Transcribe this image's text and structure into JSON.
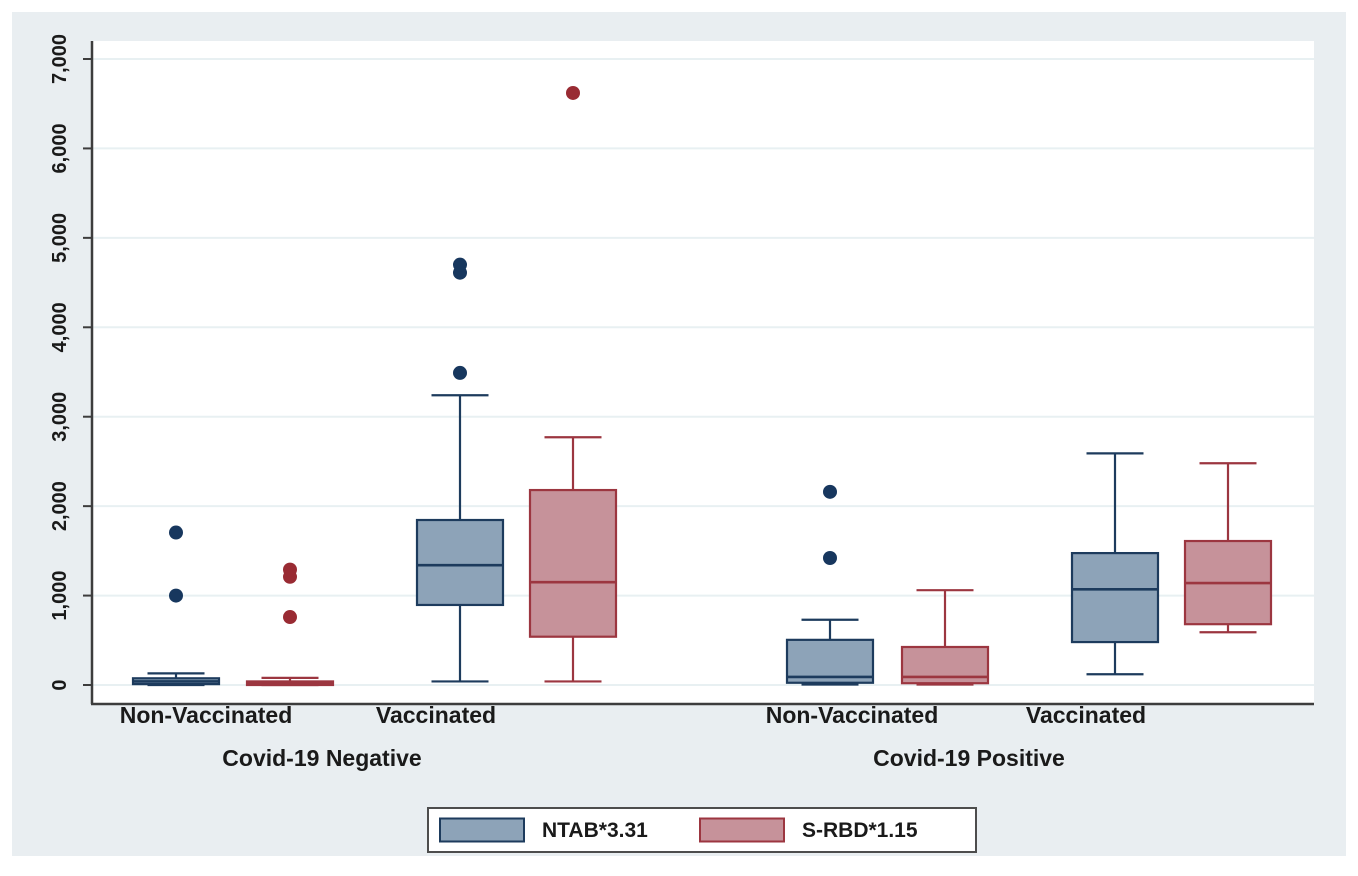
{
  "colors": {
    "canvas_background": "#e9eef1",
    "plot_background": "#ffffff",
    "gridline": "#e8f0f2",
    "axis": "#3d3d3d",
    "text": "#1a1a1a",
    "legend_border": "#4d4d4d",
    "ntab_fill": "#8da3b8",
    "ntab_stroke": "#1d3b5d",
    "ntab_dot": "#17375e",
    "srbd_fill": "#c6929a",
    "srbd_stroke": "#9c3640",
    "srbd_dot": "#992b33"
  },
  "chart_data": {
    "type": "box",
    "title": "",
    "xlabel": "",
    "ylabel": "",
    "grid": true,
    "ylim": [
      0,
      7400
    ],
    "y_axis": {
      "tick_values": [
        0,
        1000,
        2000,
        3000,
        4000,
        5000,
        6000,
        7000
      ],
      "tick_labels": [
        "0",
        "1,000",
        "2,000",
        "3,000",
        "4,000",
        "5,000",
        "6,000",
        "7,000"
      ]
    },
    "x_axis": {
      "category_labels": [
        "Non-Vaccinated",
        "Vaccinated",
        "Non-Vaccinated",
        "Vaccinated"
      ],
      "group_labels": [
        "Covid-19 Negative",
        "Covid-19 Positive"
      ]
    },
    "legend": {
      "position": "bottom-center",
      "entries": [
        {
          "label": "NTAB*3.31",
          "fill": "#8da3b8",
          "stroke": "#1d3b5d"
        },
        {
          "label": "S-RBD*1.15",
          "fill": "#c6929a",
          "stroke": "#9c3640"
        }
      ]
    },
    "series": [
      {
        "name": "NTAB*3.31",
        "fill": "#8da3b8",
        "stroke": "#1d3b5d",
        "dot": "#17375e"
      },
      {
        "name": "S-RBD*1.15",
        "fill": "#c6929a",
        "stroke": "#9c3640",
        "dot": "#992b33"
      }
    ],
    "boxes": [
      {
        "group": "Covid-19 Negative",
        "category": "Non-Vaccinated",
        "series": "NTAB*3.31",
        "whislo": 0,
        "q1": 10,
        "median": 40,
        "q3": 75,
        "whishi": 130,
        "outliers": [
          1000,
          1705
        ]
      },
      {
        "group": "Covid-19 Negative",
        "category": "Non-Vaccinated",
        "series": "S-RBD*1.15",
        "whislo": 0,
        "q1": 0,
        "median": 15,
        "q3": 40,
        "whishi": 80,
        "outliers": [
          760,
          1210,
          1290
        ]
      },
      {
        "group": "Covid-19 Negative",
        "category": "Vaccinated",
        "series": "NTAB*3.31",
        "whislo": 40,
        "q1": 895,
        "median": 1340,
        "q3": 1845,
        "whishi": 3240,
        "outliers": [
          3490,
          4610,
          4700
        ]
      },
      {
        "group": "Covid-19 Negative",
        "category": "Vaccinated",
        "series": "S-RBD*1.15",
        "whislo": 40,
        "q1": 540,
        "median": 1150,
        "q3": 2180,
        "whishi": 2770,
        "outliers": [
          6620
        ]
      },
      {
        "group": "Covid-19 Positive",
        "category": "Non-Vaccinated",
        "series": "NTAB*3.31",
        "whislo": 5,
        "q1": 25,
        "median": 90,
        "q3": 505,
        "whishi": 730,
        "outliers": [
          1420,
          2160
        ]
      },
      {
        "group": "Covid-19 Positive",
        "category": "Non-Vaccinated",
        "series": "S-RBD*1.15",
        "whislo": 5,
        "q1": 20,
        "median": 90,
        "q3": 425,
        "whishi": 1060,
        "outliers": []
      },
      {
        "group": "Covid-19 Positive",
        "category": "Vaccinated",
        "series": "NTAB*3.31",
        "whislo": 120,
        "q1": 480,
        "median": 1070,
        "q3": 1475,
        "whishi": 2590,
        "outliers": []
      },
      {
        "group": "Covid-19 Positive",
        "category": "Vaccinated",
        "series": "S-RBD*1.15",
        "whislo": 590,
        "q1": 680,
        "median": 1140,
        "q3": 1610,
        "whishi": 2480,
        "outliers": []
      }
    ]
  }
}
